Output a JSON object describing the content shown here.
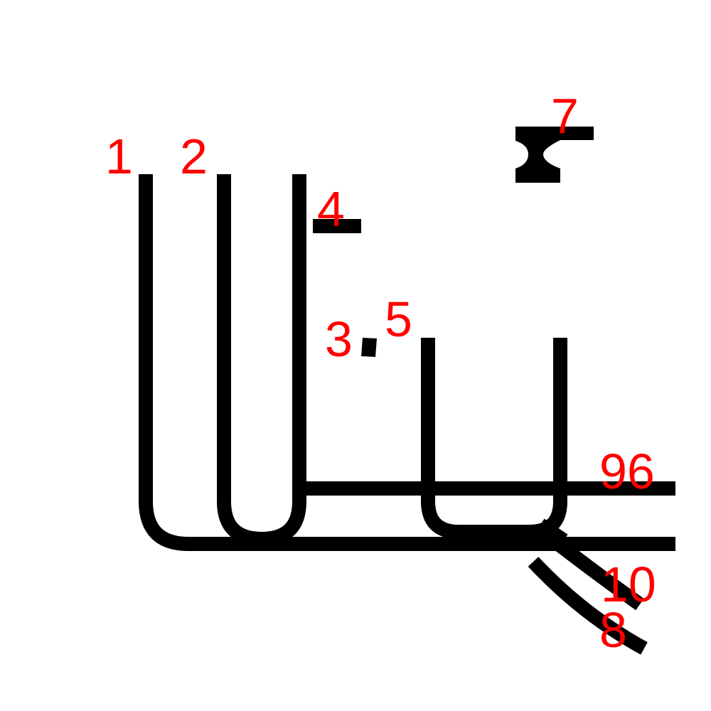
{
  "labels": {
    "l1": "1",
    "l2": "2",
    "l3": "3",
    "l4": "4",
    "l5": "5",
    "l7": "7",
    "l96": "96",
    "l10": "10",
    "l8": "8"
  },
  "colors": {
    "line": "#000000",
    "label": "#ff0000",
    "background": "#ffffff"
  }
}
